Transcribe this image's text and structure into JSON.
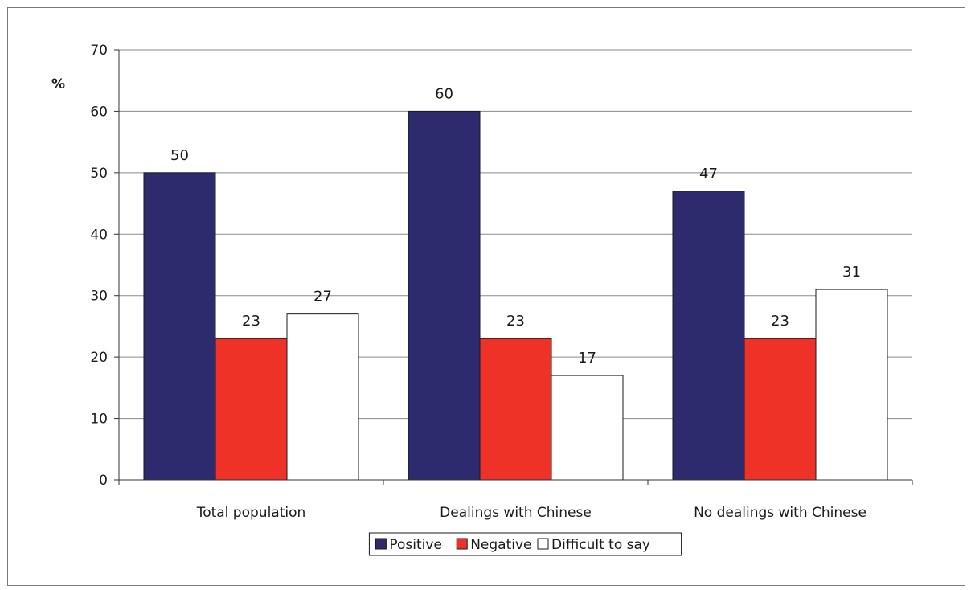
{
  "chart_data": {
    "type": "bar",
    "title": "",
    "xlabel": "",
    "ylabel": "%",
    "ylim": [
      0,
      70
    ],
    "yticks": [
      0,
      10,
      20,
      30,
      40,
      50,
      60,
      70
    ],
    "grid": true,
    "legend_position": "bottom",
    "categories": [
      "Total population",
      "Dealings with Chinese",
      "No dealings with Chinese"
    ],
    "series": [
      {
        "name": "Positive",
        "values": [
          50,
          60,
          47
        ],
        "color": "#2e2a6e"
      },
      {
        "name": "Negative",
        "values": [
          23,
          23,
          23
        ],
        "color": "#ee3228"
      },
      {
        "name": "Difficult to say",
        "values": [
          27,
          17,
          31
        ],
        "color": "#ffffff"
      }
    ]
  }
}
